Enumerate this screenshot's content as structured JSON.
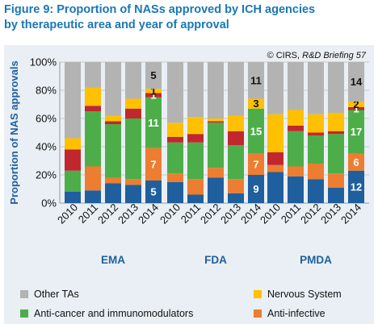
{
  "figure": {
    "title_line1": "Figure 9: Proportion of NASs approved by ICH agencies",
    "title_line2": "by therapeutic area and year of approval",
    "source": "© CIRS, R&D Briefing 57"
  },
  "colors": {
    "Other TAs": "#b3b3b3",
    "Nervous System": "#ffc000",
    "Anti-infective": "#ed7d31",
    "Anti-cancer and immunomodulators": "#4dae49",
    "Red segment": "#c0282d",
    "Blue segment": "#1f5f9e",
    "title": "#1a78b4",
    "panel": "#e9eff4"
  },
  "legend": {
    "other": "Other TAs",
    "nervous": "Nervous System",
    "anticancer": "Anti-cancer and immunomodulators",
    "antiinfective": "Anti-infective"
  },
  "chart_data": {
    "type": "bar",
    "stacked": true,
    "ylabel": "Proportion of NAS approvals",
    "ylim": [
      0,
      100
    ],
    "yticks": [
      "0%",
      "20%",
      "40%",
      "60%",
      "80%",
      "100%"
    ],
    "grid": true,
    "legend_position": "bottom",
    "groups": [
      {
        "name": "EMA",
        "categories": [
          "2010",
          "2011",
          "2012",
          "2013",
          "2014"
        ],
        "stacks": [
          [
            {
              "v": 8,
              "c": "Blue segment"
            },
            {
              "v": 0,
              "c": "Anti-infective"
            },
            {
              "v": 15,
              "c": "Anti-cancer and immunomodulators"
            },
            {
              "v": 15,
              "c": "Red segment"
            },
            {
              "v": 8,
              "c": "Nervous System"
            },
            {
              "v": 54,
              "c": "Other TAs"
            }
          ],
          [
            {
              "v": 9,
              "c": "Blue segment"
            },
            {
              "v": 17,
              "c": "Anti-infective"
            },
            {
              "v": 39,
              "c": "Anti-cancer and immunomodulators"
            },
            {
              "v": 4,
              "c": "Red segment"
            },
            {
              "v": 13,
              "c": "Nervous System"
            },
            {
              "v": 18,
              "c": "Other TAs"
            }
          ],
          [
            {
              "v": 14,
              "c": "Blue segment"
            },
            {
              "v": 4,
              "c": "Anti-infective"
            },
            {
              "v": 38,
              "c": "Anti-cancer and immunomodulators"
            },
            {
              "v": 2,
              "c": "Red segment"
            },
            {
              "v": 4,
              "c": "Nervous System"
            },
            {
              "v": 38,
              "c": "Other TAs"
            }
          ],
          [
            {
              "v": 13,
              "c": "Blue segment"
            },
            {
              "v": 4,
              "c": "Anti-infective"
            },
            {
              "v": 43,
              "c": "Anti-cancer and immunomodulators"
            },
            {
              "v": 7,
              "c": "Red segment"
            },
            {
              "v": 7,
              "c": "Nervous System"
            },
            {
              "v": 26,
              "c": "Other TAs"
            }
          ],
          [
            {
              "v": 16,
              "c": "Blue segment",
              "label": "5"
            },
            {
              "v": 23,
              "c": "Anti-infective",
              "label": "7"
            },
            {
              "v": 36,
              "c": "Anti-cancer and immunomodulators",
              "label": "11"
            },
            {
              "v": 3,
              "c": "Red segment",
              "label": "1"
            },
            {
              "v": 3,
              "c": "Nervous System",
              "label": "1"
            },
            {
              "v": 19,
              "c": "Other TAs",
              "label": "5"
            }
          ]
        ]
      },
      {
        "name": "FDA",
        "categories": [
          "2010",
          "2011",
          "2012",
          "2013",
          "2014"
        ],
        "stacks": [
          [
            {
              "v": 15,
              "c": "Blue segment"
            },
            {
              "v": 6,
              "c": "Anti-infective"
            },
            {
              "v": 22,
              "c": "Anti-cancer and immunomodulators"
            },
            {
              "v": 4,
              "c": "Red segment"
            },
            {
              "v": 10,
              "c": "Nervous System"
            },
            {
              "v": 43,
              "c": "Other TAs"
            }
          ],
          [
            {
              "v": 6,
              "c": "Blue segment"
            },
            {
              "v": 11,
              "c": "Anti-infective"
            },
            {
              "v": 26,
              "c": "Anti-cancer and immunomodulators"
            },
            {
              "v": 6,
              "c": "Red segment"
            },
            {
              "v": 12,
              "c": "Nervous System"
            },
            {
              "v": 39,
              "c": "Other TAs"
            }
          ],
          [
            {
              "v": 18,
              "c": "Blue segment"
            },
            {
              "v": 7,
              "c": "Anti-infective"
            },
            {
              "v": 32,
              "c": "Anti-cancer and immunomodulators"
            },
            {
              "v": 1,
              "c": "Red segment"
            },
            {
              "v": 2,
              "c": "Nervous System"
            },
            {
              "v": 40,
              "c": "Other TAs"
            }
          ],
          [
            {
              "v": 7,
              "c": "Blue segment"
            },
            {
              "v": 10,
              "c": "Anti-infective"
            },
            {
              "v": 24,
              "c": "Anti-cancer and immunomodulators"
            },
            {
              "v": 10,
              "c": "Red segment"
            },
            {
              "v": 11,
              "c": "Nervous System"
            },
            {
              "v": 38,
              "c": "Other TAs"
            }
          ],
          [
            {
              "v": 20,
              "c": "Blue segment",
              "label": "9"
            },
            {
              "v": 15,
              "c": "Anti-infective",
              "label": "7"
            },
            {
              "v": 32,
              "c": "Anti-cancer and immunomodulators",
              "label": "15"
            },
            {
              "v": 0,
              "c": "Red segment"
            },
            {
              "v": 7,
              "c": "Nervous System",
              "label": "3"
            },
            {
              "v": 26,
              "c": "Other TAs",
              "label": "11"
            }
          ]
        ]
      },
      {
        "name": "PMDA",
        "categories": [
          "2010",
          "2011",
          "2012",
          "2013",
          "2014"
        ],
        "stacks": [
          [
            {
              "v": 22,
              "c": "Blue segment"
            },
            {
              "v": 5,
              "c": "Anti-infective"
            },
            {
              "v": 0,
              "c": "Anti-cancer and immunomodulators"
            },
            {
              "v": 9,
              "c": "Red segment"
            },
            {
              "v": 27,
              "c": "Nervous System"
            },
            {
              "v": 37,
              "c": "Other TAs"
            }
          ],
          [
            {
              "v": 19,
              "c": "Blue segment"
            },
            {
              "v": 7,
              "c": "Anti-infective"
            },
            {
              "v": 25,
              "c": "Anti-cancer and immunomodulators"
            },
            {
              "v": 4,
              "c": "Red segment"
            },
            {
              "v": 11,
              "c": "Nervous System"
            },
            {
              "v": 34,
              "c": "Other TAs"
            }
          ],
          [
            {
              "v": 17,
              "c": "Blue segment"
            },
            {
              "v": 11,
              "c": "Anti-infective"
            },
            {
              "v": 20,
              "c": "Anti-cancer and immunomodulators"
            },
            {
              "v": 2,
              "c": "Red segment"
            },
            {
              "v": 13,
              "c": "Nervous System"
            },
            {
              "v": 37,
              "c": "Other TAs"
            }
          ],
          [
            {
              "v": 11,
              "c": "Blue segment"
            },
            {
              "v": 10,
              "c": "Anti-infective"
            },
            {
              "v": 28,
              "c": "Anti-cancer and immunomodulators"
            },
            {
              "v": 2,
              "c": "Red segment"
            },
            {
              "v": 13,
              "c": "Nervous System"
            },
            {
              "v": 36,
              "c": "Other TAs"
            }
          ],
          [
            {
              "v": 23,
              "c": "Blue segment",
              "label": "12"
            },
            {
              "v": 12,
              "c": "Anti-infective",
              "label": "6"
            },
            {
              "v": 31,
              "c": "Anti-cancer and immunomodulators",
              "label": "17"
            },
            {
              "v": 2,
              "c": "Red segment",
              "label": "1"
            },
            {
              "v": 4,
              "c": "Nervous System",
              "label": "2"
            },
            {
              "v": 28,
              "c": "Other TAs",
              "label": "14"
            }
          ]
        ]
      }
    ]
  }
}
